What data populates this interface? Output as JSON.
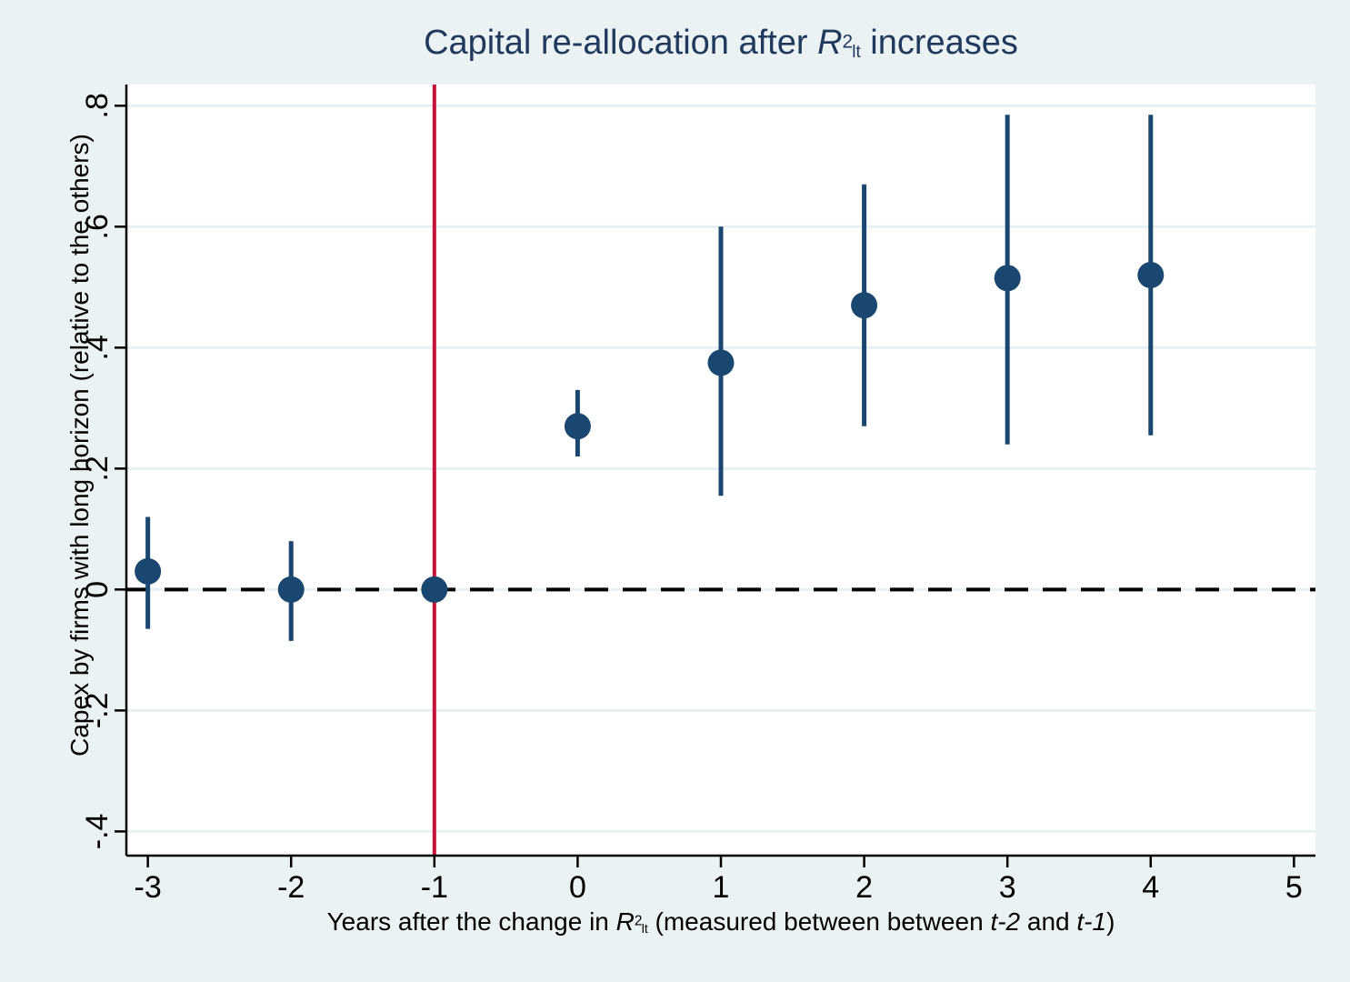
{
  "chart_data": {
    "type": "scatter",
    "subtype": "coefficient-plot-with-confidence-intervals",
    "title_segments": [
      {
        "t": "Capital re-allocation after "
      },
      {
        "t": "R",
        "i": true
      },
      {
        "t": "2",
        "sup": true
      },
      {
        "t": "lt",
        "sub": true
      },
      {
        "t": " increases"
      }
    ],
    "xlabel_segments": [
      {
        "t": "Years after the change in "
      },
      {
        "t": "R",
        "i": true
      },
      {
        "t": "2",
        "sup": true
      },
      {
        "t": "lt",
        "sub": true
      },
      {
        "t": " (measured between between "
      },
      {
        "t": "t-2",
        "i": true
      },
      {
        "t": " and "
      },
      {
        "t": "t-1",
        "i": true
      },
      {
        "t": ")"
      }
    ],
    "ylabel": "Capex by firms with long horizon (relative to the others)",
    "x_ticks": [
      {
        "v": -3,
        "label": "-3"
      },
      {
        "v": -2,
        "label": "-2"
      },
      {
        "v": -1,
        "label": "-1"
      },
      {
        "v": 0,
        "label": "0"
      },
      {
        "v": 1,
        "label": "1"
      },
      {
        "v": 2,
        "label": "2"
      },
      {
        "v": 3,
        "label": "3"
      },
      {
        "v": 4,
        "label": "4"
      },
      {
        "v": 5,
        "label": "5"
      }
    ],
    "y_ticks": [
      {
        "v": 0.8,
        "label": ".8"
      },
      {
        "v": 0.6,
        "label": ".6"
      },
      {
        "v": 0.4,
        "label": ".4"
      },
      {
        "v": 0.2,
        "label": ".2"
      },
      {
        "v": 0.0,
        "label": "0"
      },
      {
        "v": -0.2,
        "label": "-.2"
      },
      {
        "v": -0.4,
        "label": "-.4"
      }
    ],
    "xlim": [
      -3.15,
      5.15
    ],
    "ylim": [
      -0.44,
      0.835
    ],
    "grid": true,
    "legend_position": "none",
    "points": [
      {
        "x": -3,
        "est": 0.03,
        "lo": -0.065,
        "hi": 0.12
      },
      {
        "x": -2,
        "est": 0.0,
        "lo": -0.085,
        "hi": 0.08
      },
      {
        "x": -1,
        "est": 0.0,
        "lo": 0.0,
        "hi": 0.0,
        "reference": true
      },
      {
        "x": 0,
        "est": 0.27,
        "lo": 0.22,
        "hi": 0.33
      },
      {
        "x": 1,
        "est": 0.375,
        "lo": 0.155,
        "hi": 0.6
      },
      {
        "x": 2,
        "est": 0.47,
        "lo": 0.27,
        "hi": 0.67
      },
      {
        "x": 3,
        "est": 0.515,
        "lo": 0.24,
        "hi": 0.785
      },
      {
        "x": 4,
        "est": 0.52,
        "lo": 0.255,
        "hi": 0.785
      }
    ],
    "reference_lines": {
      "event_vline": {
        "x": -1,
        "style": "solid",
        "color": "#c41337"
      },
      "zero_hline": {
        "y": 0,
        "style": "dashed",
        "color": "#000000"
      }
    },
    "colors": {
      "marker": "#1a476f",
      "ci": "#1a476f",
      "grid": "#e7f0f2",
      "plot_background": "#ffffff",
      "page_background": "#eaf2f3",
      "title": "#20395c",
      "axis": "#000000",
      "tick_label": "#000000"
    }
  }
}
